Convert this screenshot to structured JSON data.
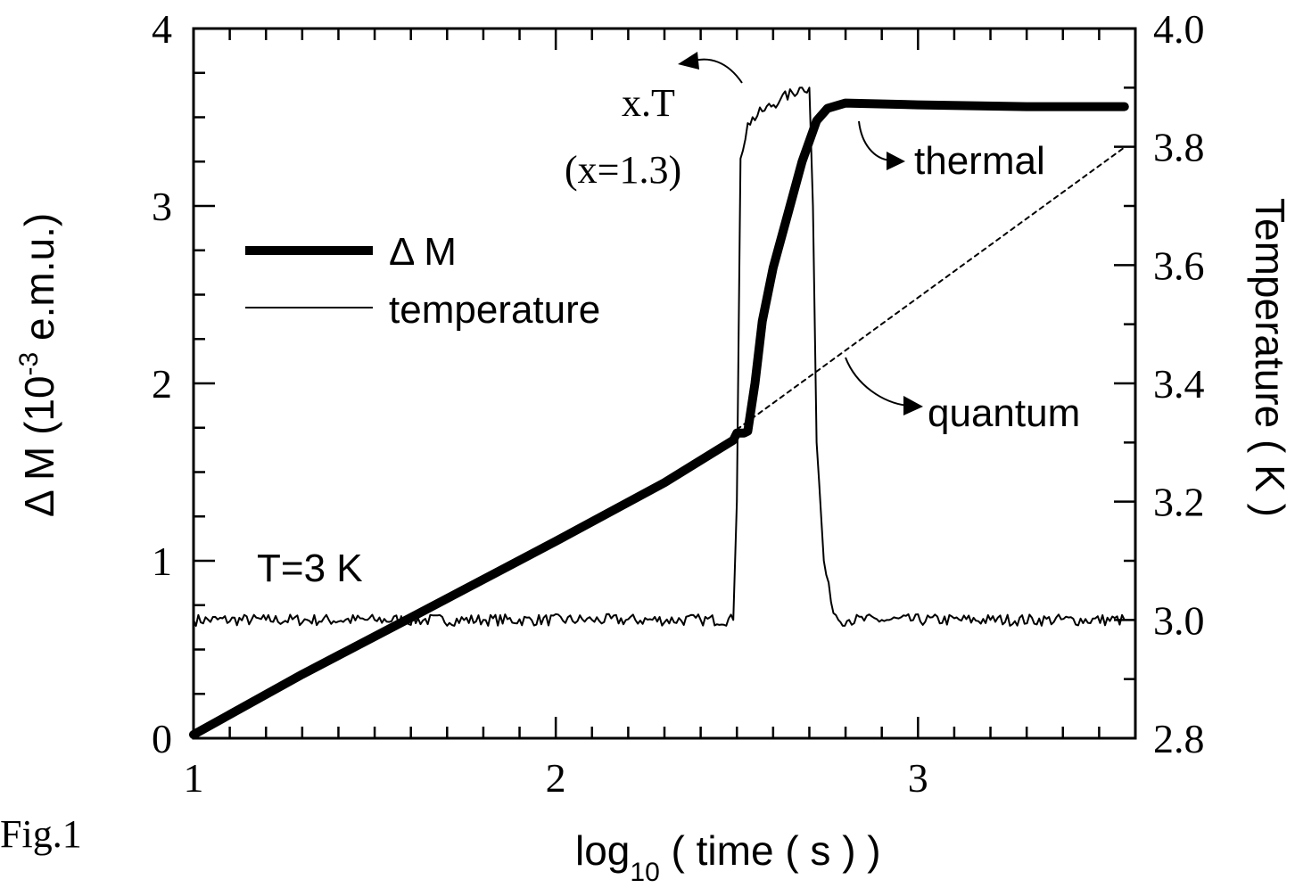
{
  "figure_label": "Fig.1",
  "chart_data": {
    "type": "line",
    "xlabel_main": "log",
    "xlabel_sub": "10",
    "xlabel_rest": " ( time ( s ) )",
    "ylabel_left_main": "Δ M (10",
    "ylabel_left_sup": "-3",
    "ylabel_left_rest": " e.m.u.)",
    "ylabel_right": "Temperature ( K )",
    "xlim": [
      1,
      3.6
    ],
    "ylim_left": [
      0,
      4
    ],
    "ylim_right": [
      2.8,
      4.0
    ],
    "x_ticks": [
      "1",
      "2",
      "3"
    ],
    "y_left_ticks": [
      "0",
      "1",
      "2",
      "3",
      "4"
    ],
    "y_right_ticks": [
      "2.8",
      "3.0",
      "3.2",
      "3.4",
      "3.6",
      "3.8",
      "4.0"
    ],
    "legend": [
      {
        "label": "Δ M",
        "style": "thick"
      },
      {
        "label": "temperature",
        "style": "thin"
      }
    ],
    "annotations": {
      "temp_label": "T=3 K",
      "xT_label": "x.T",
      "x_value": "(x=1.3)",
      "thermal": "thermal",
      "quantum": "quantum"
    },
    "series": [
      {
        "name": "Δ M",
        "axis": "left",
        "x": [
          1.0,
          1.3,
          1.6,
          2.0,
          2.3,
          2.49,
          2.5,
          2.52,
          2.53,
          2.55,
          2.57,
          2.6,
          2.64,
          2.68,
          2.72,
          2.75,
          2.8,
          3.0,
          3.3,
          3.57
        ],
        "y": [
          0.02,
          0.36,
          0.68,
          1.11,
          1.44,
          1.68,
          1.72,
          1.72,
          1.73,
          2.0,
          2.35,
          2.65,
          2.95,
          3.25,
          3.48,
          3.55,
          3.58,
          3.57,
          3.56,
          3.56
        ]
      },
      {
        "name": "temperature",
        "axis": "right",
        "x": [
          1.0,
          1.2,
          1.5,
          1.8,
          2.1,
          2.4,
          2.49,
          2.5,
          2.51,
          2.53,
          2.57,
          2.62,
          2.68,
          2.7,
          2.71,
          2.72,
          2.74,
          2.76,
          2.78,
          2.81,
          2.9,
          3.2,
          3.57
        ],
        "y": [
          3.0,
          3.0,
          3.0,
          3.0,
          3.0,
          3.0,
          3.0,
          3.2,
          3.78,
          3.84,
          3.86,
          3.88,
          3.9,
          3.9,
          3.7,
          3.3,
          3.1,
          3.03,
          3.0,
          3.0,
          3.0,
          3.0,
          3.0
        ]
      },
      {
        "name": "quantum",
        "axis": "left",
        "style": "dotted",
        "x": [
          2.5,
          3.57
        ],
        "y": [
          1.74,
          3.33
        ]
      }
    ]
  }
}
